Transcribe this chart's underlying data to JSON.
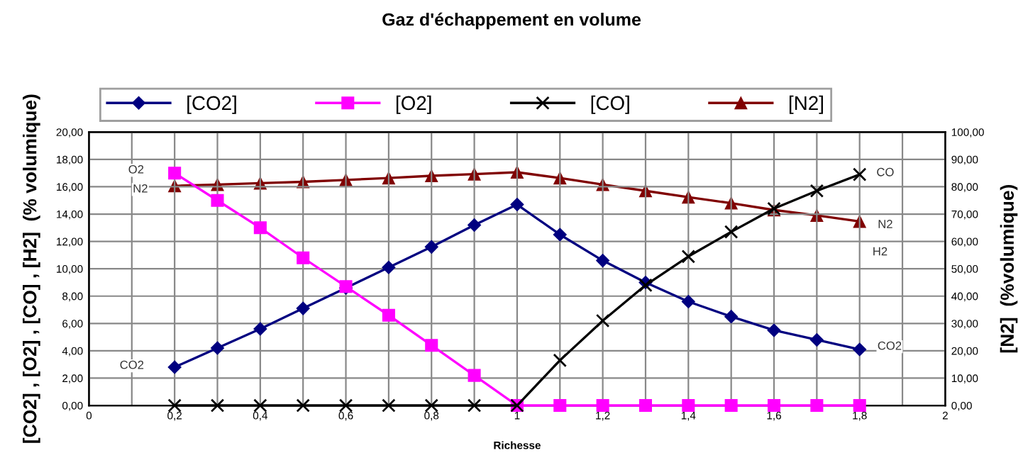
{
  "chart_data": {
    "type": "line",
    "title": "Gaz d'échappement en volume",
    "xlabel": "Richesse",
    "ylabel": "[CO2] , [O2] , [CO] , [H2]  (% volumique)",
    "y2label": "[N2]  (%volumique)",
    "x": [
      0.2,
      0.3,
      0.4,
      0.5,
      0.6,
      0.7,
      0.8,
      0.9,
      1.0,
      1.1,
      1.2,
      1.3,
      1.4,
      1.5,
      1.6,
      1.7,
      1.8
    ],
    "series": [
      {
        "name": "[CO2]",
        "color": "#000080",
        "marker": "diamond",
        "values": [
          2.8,
          4.2,
          5.6,
          7.1,
          8.6,
          10.1,
          11.6,
          13.2,
          14.7,
          12.5,
          10.6,
          9.0,
          7.6,
          6.5,
          5.5,
          4.8,
          4.1
        ]
      },
      {
        "name": "[O2]",
        "color": "#ff00ff",
        "marker": "square",
        "values": [
          17.0,
          15.0,
          13.0,
          10.8,
          8.7,
          6.6,
          4.4,
          2.2,
          0,
          0,
          0,
          0,
          0,
          0,
          0,
          0,
          0
        ]
      },
      {
        "name": "[CO]",
        "color": "#000000",
        "marker": "cross",
        "values": [
          0,
          0,
          0,
          0,
          0,
          0,
          0,
          0,
          0,
          3.3,
          6.2,
          8.8,
          10.9,
          12.7,
          14.4,
          15.7,
          16.9
        ]
      },
      {
        "name": "[N2]",
        "color": "#800000",
        "marker": "triangle",
        "axis": "y2",
        "values": [
          80.3,
          80.8,
          81.3,
          81.8,
          82.5,
          83.2,
          84.0,
          84.6,
          85.3,
          83.2,
          80.8,
          78.5,
          76.2,
          74.0,
          71.5,
          69.5,
          67.3
        ]
      }
    ],
    "xlim": [
      0,
      2
    ],
    "xticks": [
      0,
      {
        "value": 0.1,
        "label": null
      },
      {
        "value": 0.2,
        "label": "0,2"
      },
      {
        "value": 0.3,
        "label": null
      },
      {
        "value": 0.4,
        "label": "0,4"
      },
      {
        "value": 0.5,
        "label": null
      },
      {
        "value": 0.6,
        "label": "0,6"
      },
      {
        "value": 0.7,
        "label": null
      },
      {
        "value": 0.8,
        "label": "0,8"
      },
      {
        "value": 0.9,
        "label": null
      },
      1,
      {
        "value": 1.1,
        "label": null
      },
      {
        "value": 1.2,
        "label": "1,2"
      },
      {
        "value": 1.3,
        "label": null
      },
      {
        "value": 1.4,
        "label": "1,4"
      },
      {
        "value": 1.5,
        "label": null
      },
      {
        "value": 1.6,
        "label": "1,6"
      },
      {
        "value": 1.7,
        "label": null
      },
      {
        "value": 1.8,
        "label": "1,8"
      },
      {
        "value": 1.9,
        "label": null
      },
      2
    ],
    "ylim": [
      0,
      20
    ],
    "yticks": [
      {
        "value": 0,
        "label": "0,00"
      },
      {
        "value": 2,
        "label": "2,00"
      },
      {
        "value": 4,
        "label": "4,00"
      },
      {
        "value": 6,
        "label": "6,00"
      },
      {
        "value": 8,
        "label": "8,00"
      },
      {
        "value": 10,
        "label": "10,00"
      },
      {
        "value": 12,
        "label": "12,00"
      },
      {
        "value": 14,
        "label": "14,00"
      },
      {
        "value": 16,
        "label": "16,00"
      },
      {
        "value": 18,
        "label": "18,00"
      },
      {
        "value": 20,
        "label": "20,00"
      }
    ],
    "y2lim": [
      0,
      100
    ],
    "y2ticks": [
      {
        "value": 0,
        "label": "0,00"
      },
      {
        "value": 10,
        "label": "10,00"
      },
      {
        "value": 20,
        "label": "20,00"
      },
      {
        "value": 30,
        "label": "30,00"
      },
      {
        "value": 40,
        "label": "40,00"
      },
      {
        "value": 50,
        "label": "50,00"
      },
      {
        "value": 60,
        "label": "60,00"
      },
      {
        "value": 70,
        "label": "70,00"
      },
      {
        "value": 80,
        "label": "80,00"
      },
      {
        "value": 90,
        "label": "90,00"
      },
      {
        "value": 100,
        "label": "100,00"
      }
    ],
    "annotations": [
      {
        "text": "O2",
        "x": 0.11,
        "y": 17.2
      },
      {
        "text": "N2",
        "x": 0.12,
        "y": 15.8
      },
      {
        "text": "CO2",
        "x": 0.1,
        "y": 2.9
      },
      {
        "text": "CO",
        "x": 1.86,
        "y": 17.0
      },
      {
        "text": "N2",
        "x": 1.86,
        "y": 13.2
      },
      "H2",
      {
        "text": "CO2",
        "x": 1.87,
        "y": 4.3
      }
    ],
    "grid": true,
    "legend": "top",
    "line_style": "solid"
  }
}
